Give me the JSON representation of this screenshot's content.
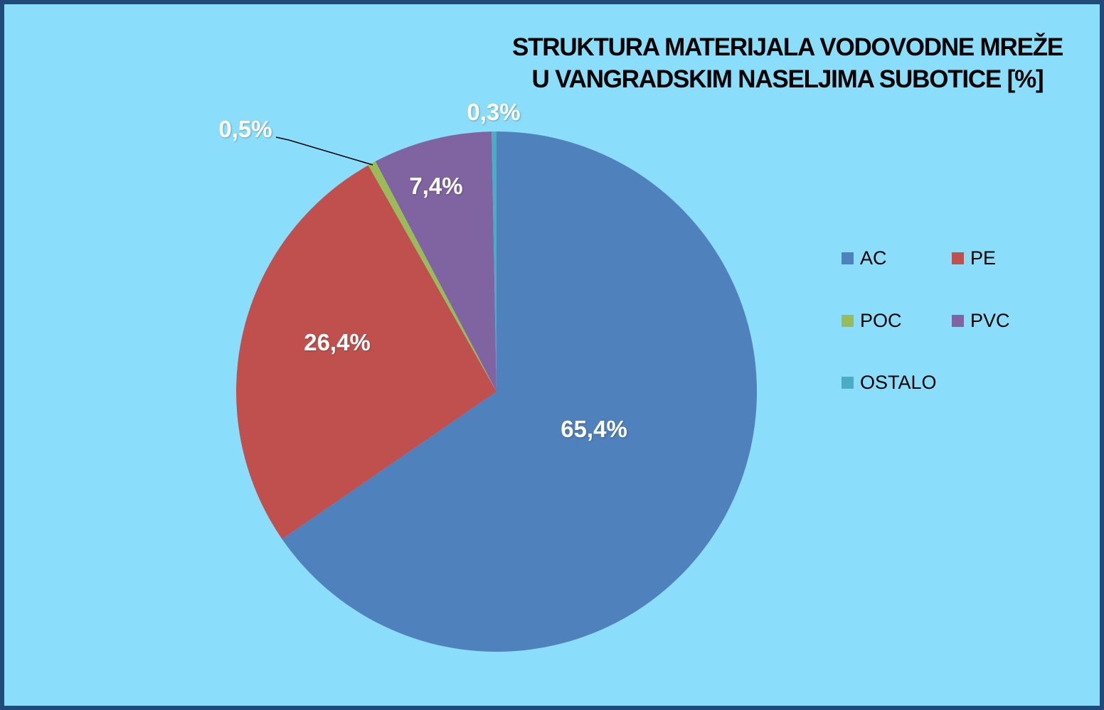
{
  "frame": {
    "background_color": "#8ADEFB",
    "border_color": "#204A7A"
  },
  "title": {
    "line1": "STRUKTURA MATERIJALA VODOVODNE MREŽE",
    "line2": "U VANGRADSKIM NASELJIMA SUBOTICE [%]"
  },
  "chart_data": {
    "type": "pie",
    "title": "STRUKTURA MATERIJALA VODOVODNE MREŽE U VANGRADSKIM NASELJIMA SUBOTICE [%]",
    "unit": "%",
    "start_angle_deg": 0,
    "direction": "clockwise",
    "categories": [
      "AC",
      "PE",
      "POC",
      "PVC",
      "OSTALO"
    ],
    "values": [
      65.4,
      26.4,
      0.5,
      7.4,
      0.3
    ],
    "colors": [
      "#4F81BD",
      "#C0504D",
      "#9BBB59",
      "#8064A2",
      "#4BACC6"
    ],
    "slice_labels": [
      "65,4%",
      "26,4%",
      "0,5%",
      "7,4%",
      "0,3%"
    ],
    "legend_position": "right",
    "label_decimal_separator": ","
  },
  "legend": {
    "items": [
      {
        "label": "AC",
        "color": "#4F81BD"
      },
      {
        "label": "PE",
        "color": "#C0504D"
      },
      {
        "label": "POC",
        "color": "#9BBB59"
      },
      {
        "label": "PVC",
        "color": "#8064A2"
      },
      {
        "label": "OSTALO",
        "color": "#4BACC6"
      }
    ]
  }
}
